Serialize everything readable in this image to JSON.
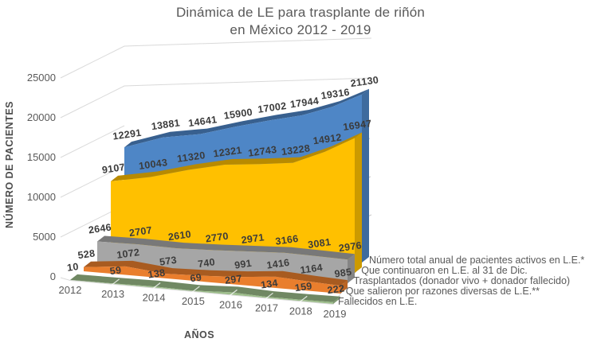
{
  "title": {
    "line1": "Dinámica de LE para trasplante de riñón",
    "line2": "en México 2012 - 2019"
  },
  "chart_data": {
    "type": "area",
    "projection": "3d-depth-series",
    "title": "Dinámica de LE para trasplante de riñón en México 2012 - 2019",
    "xlabel": "AÑOS",
    "ylabel": "NÚMERO DE PACIENTES",
    "categories": [
      "2012",
      "2013",
      "2014",
      "2015",
      "2016",
      "2017",
      "2018",
      "2019"
    ],
    "y_ticks": [
      0,
      5000,
      10000,
      15000,
      20000,
      25000
    ],
    "ylim": [
      0,
      25000
    ],
    "grid": true,
    "legend_position": "right of plot, staggered along depth axis",
    "series": [
      {
        "name": "Número total anual de pacientes activos en L.E.*",
        "color": "#4E86C6",
        "values": [
          12291,
          13881,
          14641,
          15900,
          17002,
          17944,
          19316,
          21130
        ]
      },
      {
        "name": "Que continuaron en L.E.  al 31 de Dic.",
        "color": "#FFC000",
        "values": [
          9107,
          10043,
          11320,
          12321,
          12743,
          13228,
          14912,
          16947
        ]
      },
      {
        "name": "Trasplantados (donador vivo + donador fallecido)",
        "color": "#A6A6A6",
        "values": [
          2646,
          2707,
          2610,
          2770,
          2971,
          3166,
          3081,
          2976
        ]
      },
      {
        "name": "Que salieron por razones diversas de L.E.**",
        "color": "#E97E2D",
        "values": [
          528,
          1072,
          573,
          740,
          991,
          1416,
          1164,
          985
        ]
      },
      {
        "name": "Fallecidos en L.E.",
        "color": "#9CBD8A",
        "values": [
          10,
          59,
          138,
          69,
          297,
          134,
          159,
          222
        ]
      }
    ]
  }
}
